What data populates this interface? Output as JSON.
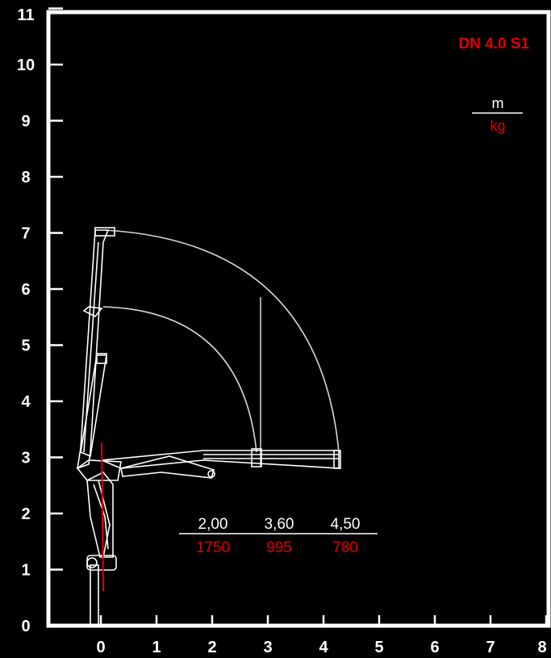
{
  "chart_data": {
    "type": "diagram",
    "model": "DN 4.0 S1",
    "units": {
      "distance": "m",
      "load": "kg"
    },
    "x_ticks": [
      "0",
      "1",
      "2",
      "3",
      "4",
      "5",
      "6",
      "7",
      "8"
    ],
    "y_ticks": [
      "0",
      "1",
      "2",
      "3",
      "4",
      "5",
      "6",
      "7",
      "8",
      "9",
      "10",
      "11"
    ],
    "xlim": [
      -0.9,
      8
    ],
    "ylim": [
      0,
      11
    ],
    "reach_table": {
      "distances": [
        "2,00",
        "3,60",
        "4,50"
      ],
      "loads": [
        "1750",
        "995",
        "780"
      ]
    },
    "colors": {
      "background": "#000000",
      "frame": "#ffffff",
      "crane": "#ffffff",
      "accent": "#e00000"
    }
  }
}
